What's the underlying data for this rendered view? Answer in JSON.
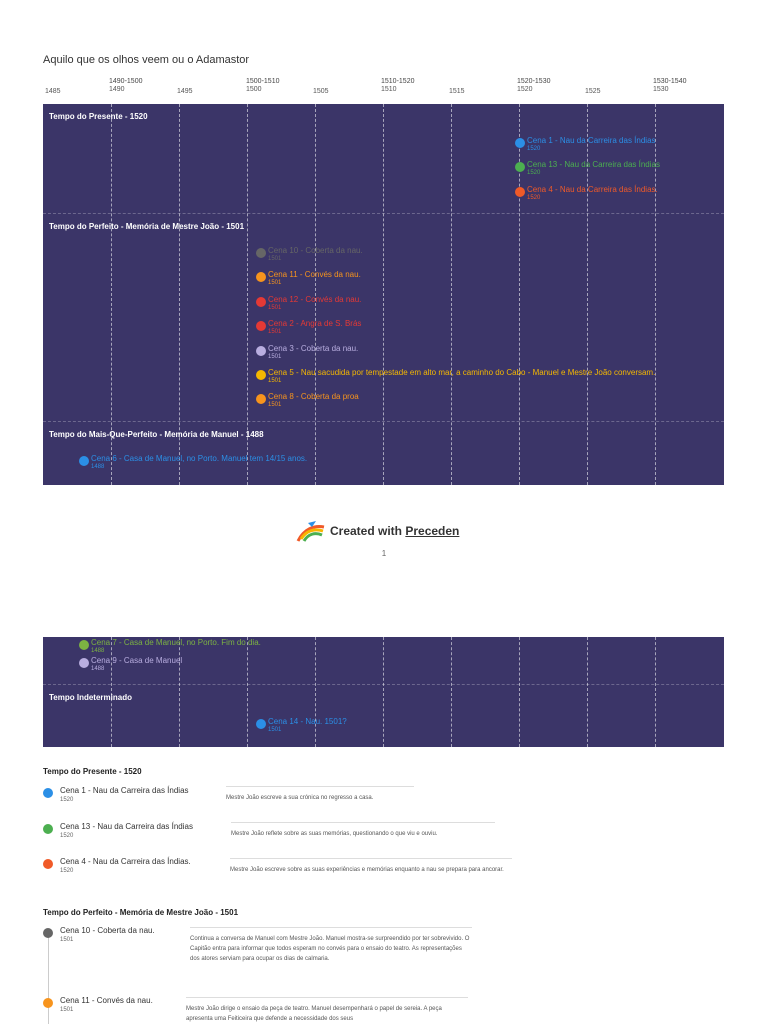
{
  "title": "Aquilo que os olhos veem ou o Adamastor",
  "axis": {
    "ticks": [
      {
        "top": "",
        "year": "1485"
      },
      {
        "top": "1490-1500",
        "year": "1490"
      },
      {
        "top": "",
        "year": "1495"
      },
      {
        "top": "1500-1510",
        "year": "1500"
      },
      {
        "top": "",
        "year": "1505"
      },
      {
        "top": "1510-1520",
        "year": "1510"
      },
      {
        "top": "",
        "year": "1515"
      },
      {
        "top": "1520-1530",
        "year": "1520"
      },
      {
        "top": "",
        "year": "1525"
      },
      {
        "top": "1530-1540",
        "year": "1530"
      }
    ]
  },
  "panel1": {
    "groups": [
      {
        "label": "Tempo do Presente - 1520"
      },
      {
        "label": "Tempo do Perfeito - Memória de Mestre João - 1501"
      },
      {
        "label": "Tempo do Mais-Que-Perfeito - Memória de Manuel - 1488"
      }
    ],
    "events": [
      {
        "name": "Cena 1 - Nau da Carreira das Índias",
        "year": "1520",
        "color": "#2b8fe6"
      },
      {
        "name": "Cena 13 - Nau da Carreira das Índias",
        "year": "1520",
        "color": "#4caf50"
      },
      {
        "name": "Cena 4 - Nau da Carreira das Índias.",
        "year": "1520",
        "color": "#f05a28"
      },
      {
        "name": "Cena 10 - Coberta da nau.",
        "year": "1501",
        "color": "#666666"
      },
      {
        "name": "Cena 11 - Convés da nau.",
        "year": "1501",
        "color": "#f7941d"
      },
      {
        "name": "Cena 12 - Convés da nau.",
        "year": "1501",
        "color": "#e53935"
      },
      {
        "name": "Cena 2 - Angra de S. Brás",
        "year": "1501",
        "color": "#e53935"
      },
      {
        "name": "Cena 3 - Coberta da nau.",
        "year": "1501",
        "color": "#b9aee0"
      },
      {
        "name": "Cena 5 - Nau sacudida por tempestade em alto mar, a caminho do Cabo - Manuel e Mestre João conversam.",
        "year": "1501",
        "color": "#f5b800"
      },
      {
        "name": "Cena 8 - Coberta da proa",
        "year": "1501",
        "color": "#f7941d"
      },
      {
        "name": "Cena 6 - Casa de Manuel, no Porto. Manuel tem 14/15 anos.",
        "year": "1488",
        "color": "#2b8fe6"
      }
    ]
  },
  "credit": {
    "prefix": "Created with ",
    "brand": "Preceden",
    "page": "1"
  },
  "panel2": {
    "groups": [
      {
        "label": "Tempo Indeterminado"
      }
    ],
    "events": [
      {
        "name": "Cena 7 - Casa de Manuel, no Porto. Fim do dia.",
        "year": "1488",
        "color": "#7cb342"
      },
      {
        "name": "Cena 9 - Casa de Manuel",
        "year": "1488",
        "color": "#b9aee0"
      },
      {
        "name": "Cena 14 - Nau. 1501?",
        "year": "1501",
        "color": "#2b8fe6"
      }
    ]
  },
  "details": {
    "sections": [
      {
        "heading": "Tempo do Presente - 1520"
      },
      {
        "heading": "Tempo do Perfeito - Memória de Mestre João - 1501"
      }
    ],
    "items": [
      {
        "name": "Cena 1 - Nau da Carreira das Índias",
        "year": "1520",
        "color": "#2b8fe6",
        "desc": "Mestre João escreve a sua crónica no regresso a casa."
      },
      {
        "name": "Cena 13 - Nau da Carreira das Índias",
        "year": "1520",
        "color": "#4caf50",
        "desc": "Mestre João reflete sobre as suas memórias, questionando o que viu e ouviu."
      },
      {
        "name": "Cena 4 - Nau da Carreira das Índias.",
        "year": "1520",
        "color": "#f05a28",
        "desc": "Mestre João escreve sobre as suas experiências e memórias enquanto a nau se prepara para ancorar."
      },
      {
        "name": "Cena 10 - Coberta da nau.",
        "year": "1501",
        "color": "#666666",
        "desc": "Continua a conversa de Manuel com Mestre João. Manuel mostra-se surpreendido por ter sobrevivido. O Capitão entra para informar que todos esperam no convés para o ensaio do teatro. As representações dos atores serviam para ocupar os dias de calmaria."
      },
      {
        "name": "Cena 11 - Convés da nau.",
        "year": "1501",
        "color": "#f7941d",
        "desc": "Mestre João dirige o ensaio da peça de teatro. Manuel desempenhará o papel de sereia. A peça apresenta uma Feiticeira que defende a necessidade dos seus"
      }
    ]
  }
}
